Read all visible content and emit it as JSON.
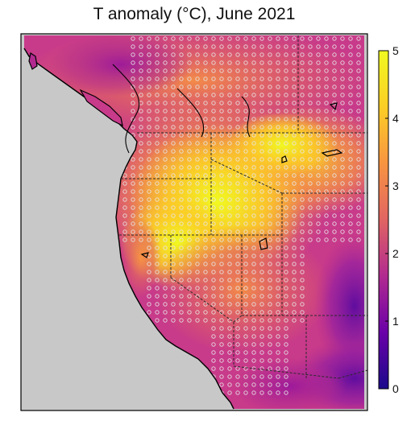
{
  "title": "T anomaly (°C), June 2021",
  "colorbar": {
    "min": 0,
    "max": 5,
    "ticks": [
      "0",
      "1",
      "2",
      "3",
      "4",
      "5"
    ],
    "colormap": [
      "#1a0a8c",
      "#6a00a8",
      "#b12a90",
      "#e16462",
      "#f89441",
      "#fcce25",
      "#f0f921"
    ]
  },
  "colors": {
    "ocean": "#c8c8c8",
    "coastline": "#000000",
    "border": "#2a2a2a",
    "stipple": "#e6e6e6",
    "frame": "#000000"
  },
  "map": {
    "region": "Western North America",
    "significance_marker": "white-circle",
    "border_style": "dashed"
  }
}
